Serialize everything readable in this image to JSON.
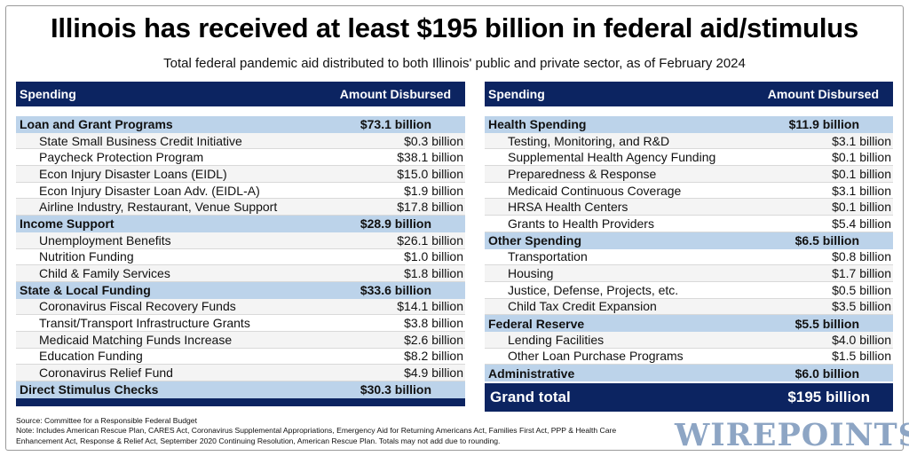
{
  "header": {
    "title": "Illinois has received at least $195 billion in federal aid/stimulus",
    "subtitle": "Total federal pandemic aid distributed to both Illinois' public and private sector, as of February 2024"
  },
  "left_table": {
    "col_spending": "Spending",
    "col_amount": "Amount Disbursed",
    "categories": [
      {
        "name": "Loan and Grant Programs",
        "amount": "$73.1 billion",
        "items": [
          {
            "name": "State Small Business Credit Initiative",
            "amount": "$0.3 billion"
          },
          {
            "name": "Paycheck Protection Program",
            "amount": "$38.1 billion"
          },
          {
            "name": "Econ Injury Disaster Loans (EIDL)",
            "amount": "$15.0 billion"
          },
          {
            "name": "Econ Injury Disaster Loan Adv. (EIDL-A)",
            "amount": "$1.9 billion"
          },
          {
            "name": "Airline Industry, Restaurant, Venue Support",
            "amount": "$17.8 billion"
          }
        ]
      },
      {
        "name": "Income Support",
        "amount": "$28.9 billion",
        "items": [
          {
            "name": "Unemployment Benefits",
            "amount": "$26.1 billion"
          },
          {
            "name": "Nutrition Funding",
            "amount": "$1.0 billion"
          },
          {
            "name": "Child & Family Services",
            "amount": "$1.8 billion"
          }
        ]
      },
      {
        "name": "State & Local Funding",
        "amount": "$33.6 billion",
        "items": [
          {
            "name": "Coronavirus Fiscal Recovery Funds",
            "amount": "$14.1 billion"
          },
          {
            "name": "Transit/Transport Infrastructure Grants",
            "amount": "$3.8 billion"
          },
          {
            "name": "Medicaid Matching Funds Increase",
            "amount": "$2.6 billion"
          },
          {
            "name": "Education Funding",
            "amount": "$8.2 billion"
          },
          {
            "name": "Coronavirus Relief Fund",
            "amount": "$4.9 billion"
          }
        ]
      },
      {
        "name": "Direct Stimulus Checks",
        "amount": "$30.3 billion",
        "items": []
      }
    ]
  },
  "right_table": {
    "col_spending": "Spending",
    "col_amount": "Amount Disbursed",
    "categories": [
      {
        "name": "Health Spending",
        "amount": "$11.9 billion",
        "items": [
          {
            "name": "Testing, Monitoring, and R&D",
            "amount": "$3.1 billion"
          },
          {
            "name": "Supplemental Health Agency Funding",
            "amount": "$0.1 billion"
          },
          {
            "name": "Preparedness & Response",
            "amount": "$0.1 billion"
          },
          {
            "name": "Medicaid Continuous Coverage",
            "amount": "$3.1 billion"
          },
          {
            "name": "HRSA Health Centers",
            "amount": "$0.1 billion"
          },
          {
            "name": "Grants to Health Providers",
            "amount": "$5.4 billion"
          }
        ]
      },
      {
        "name": "Other Spending",
        "amount": "$6.5 billion",
        "items": [
          {
            "name": "Transportation",
            "amount": "$0.8 billion"
          },
          {
            "name": "Housing",
            "amount": "$1.7 billion"
          },
          {
            "name": "Justice, Defense, Projects, etc.",
            "amount": "$0.5 billion"
          },
          {
            "name": "Child Tax Credit Expansion",
            "amount": "$3.5 billion"
          }
        ]
      },
      {
        "name": "Federal Reserve",
        "amount": "$5.5 billion",
        "items": [
          {
            "name": "Lending Facilities",
            "amount": "$4.0 billion"
          },
          {
            "name": "Other Loan Purchase Programs",
            "amount": "$1.5 billion"
          }
        ]
      },
      {
        "name": "Administrative",
        "amount": "$6.0 billion",
        "items": []
      }
    ],
    "grand_total_label": "Grand total",
    "grand_total_amount": "$195 billion"
  },
  "footer": {
    "source": "Source: Committee for a Responsible Federal Budget",
    "note": "Note: Includes American Rescue Plan, CARES Act, Coronavirus Supplemental Appropriations, Emergency Aid for Returning Americans Act, Families First Act, PPP & Health Care Enhancement Act, Response & Relief Act, September 2020 Continuing Resolution, American Rescue Plan. Totals may not add due to rounding.",
    "logo": "WIREPOINTS"
  }
}
